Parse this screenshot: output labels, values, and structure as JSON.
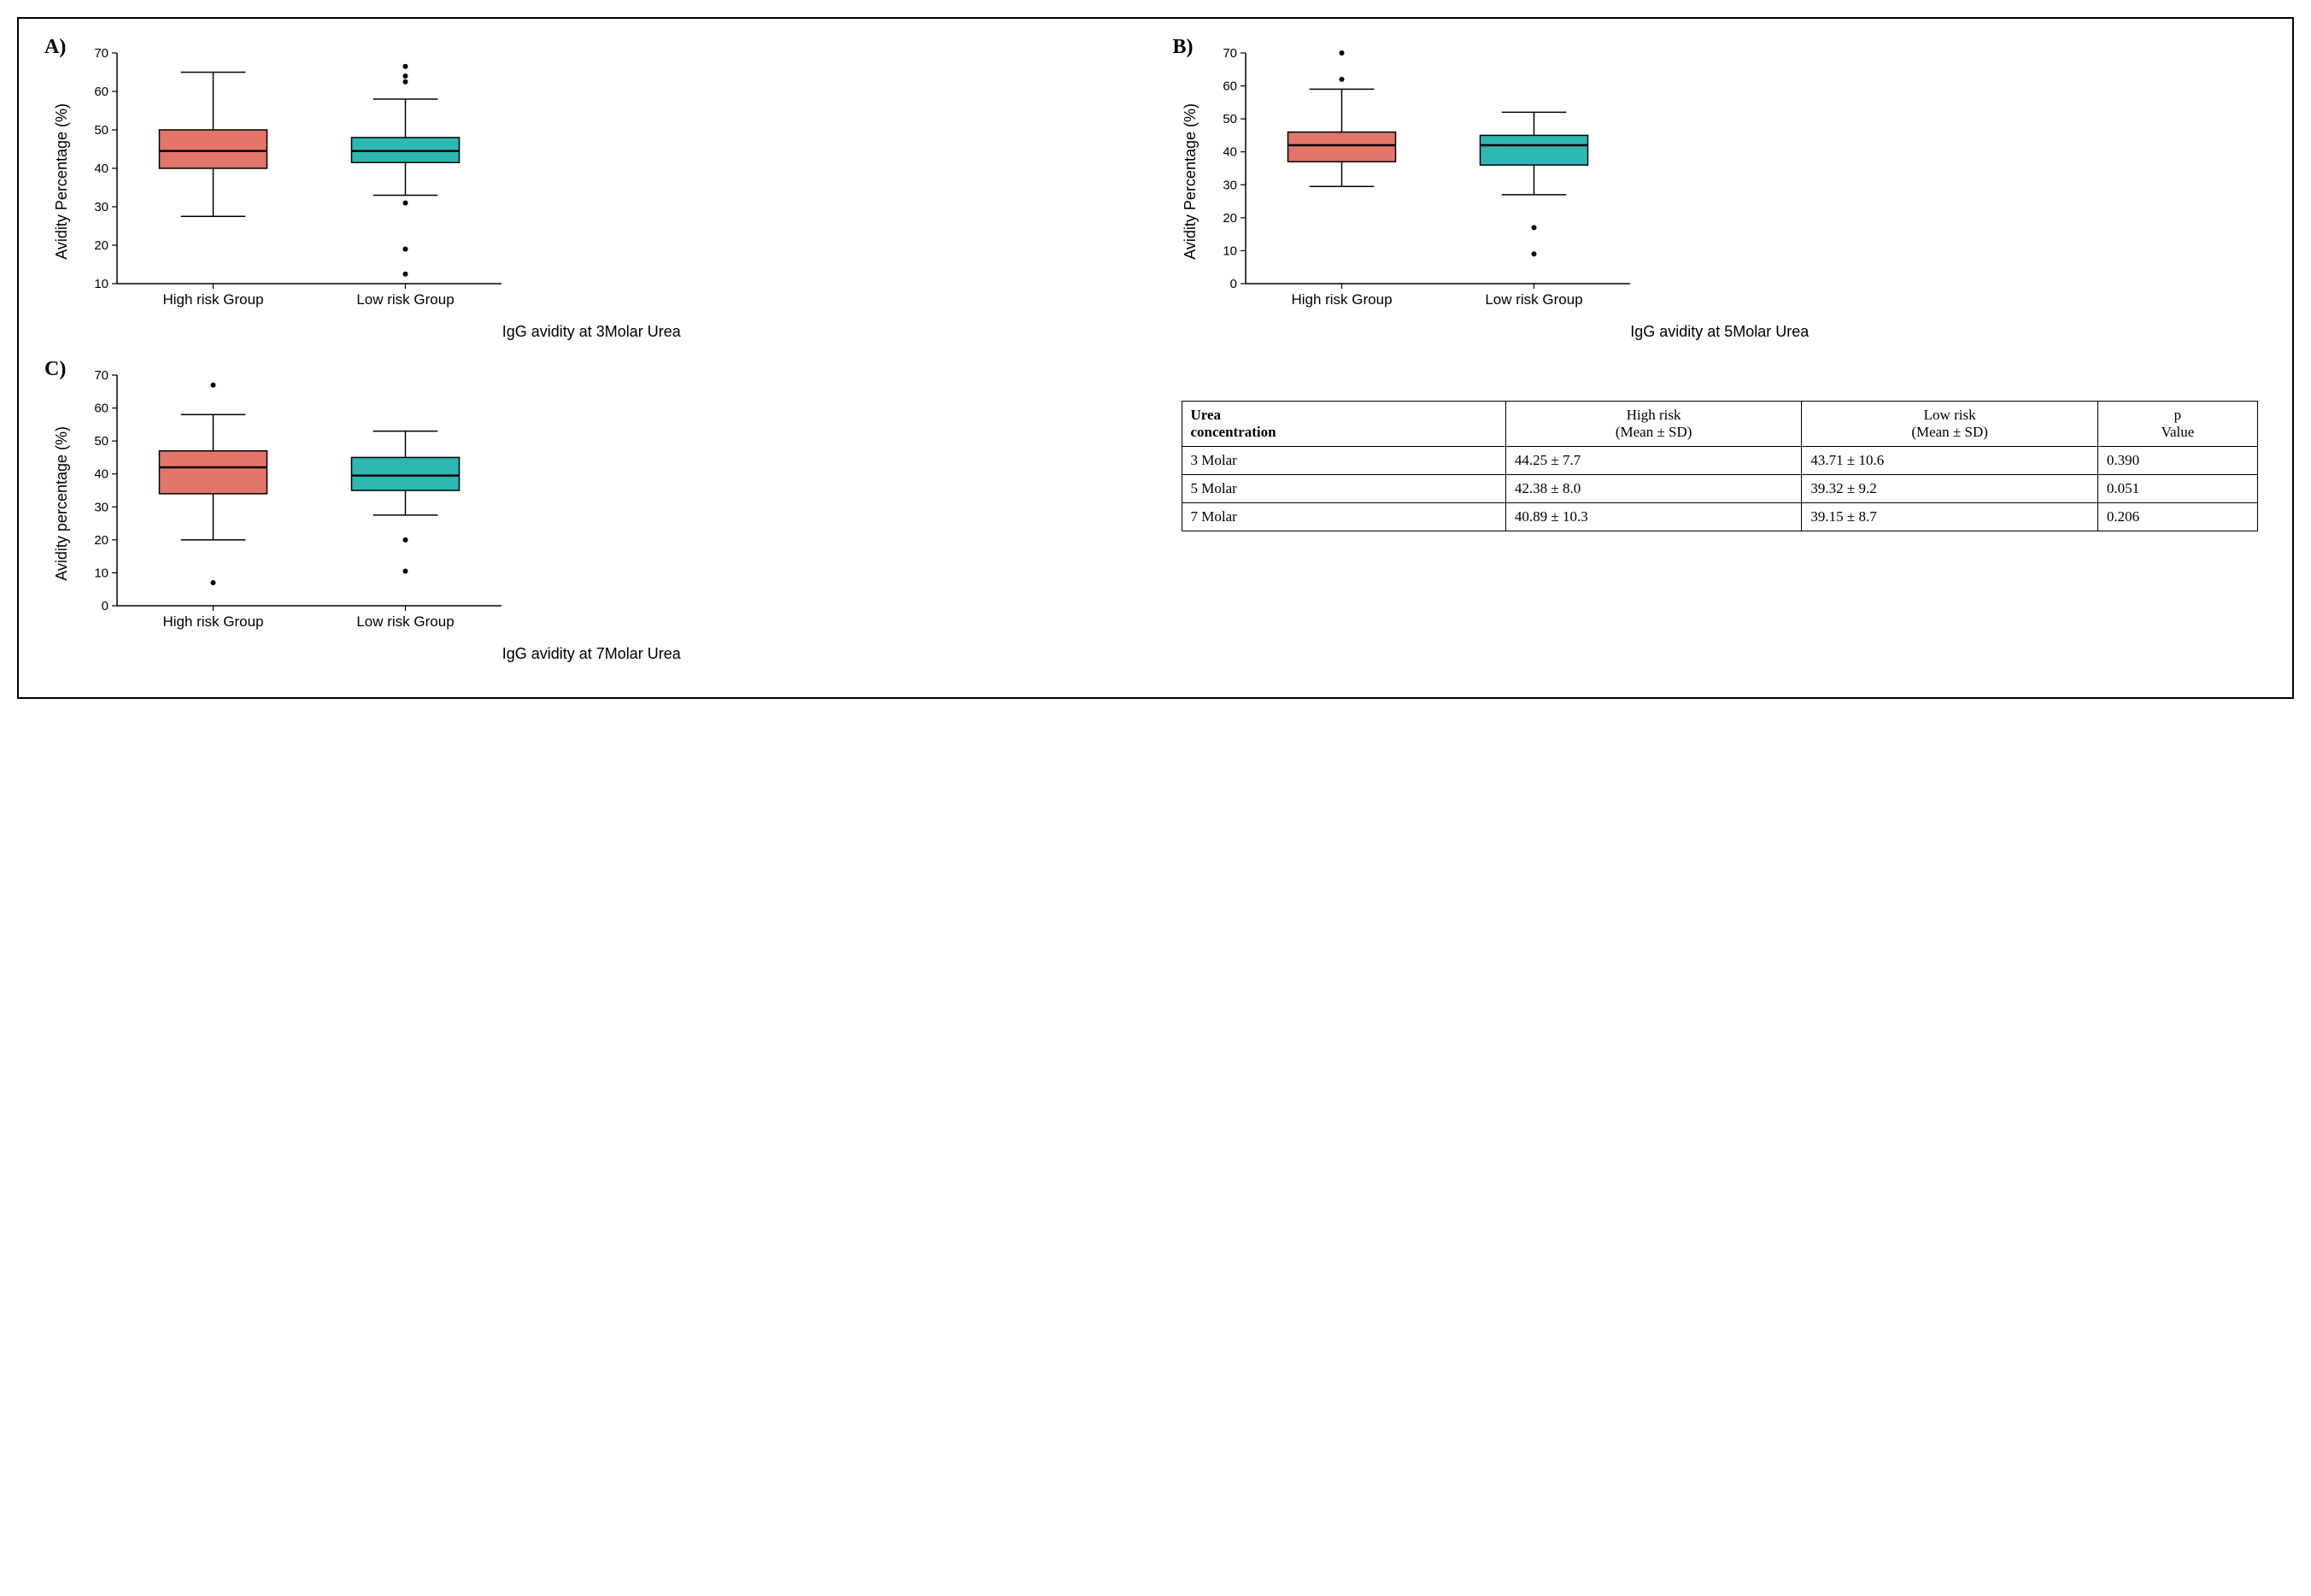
{
  "figure": {
    "background_color": "#ffffff",
    "frame_color": "#000000",
    "panel_label_fontsize": 24,
    "axis_label_fontsize": 18,
    "tick_label_fontsize": 15,
    "category_label_fontsize": 17
  },
  "colors": {
    "high_risk_fill": "#e3756a",
    "low_risk_fill": "#2eb8b3",
    "box_stroke": "#000000",
    "outlier_fill": "#000000",
    "axis_color": "#000000"
  },
  "panels": {
    "A": {
      "label": "A)",
      "ylabel": "Avidity Percentage (%)",
      "xlabel": "IgG avidity at 3Molar Urea",
      "categories": [
        "High risk Group",
        "Low risk Group"
      ],
      "ylim": [
        10,
        70
      ],
      "ytick_step": 10,
      "yticks": [
        10,
        20,
        30,
        40,
        50,
        60,
        70
      ],
      "box_width": 0.28,
      "boxes": [
        {
          "group": "High risk Group",
          "q1": 40,
          "median": 44.5,
          "q3": 50,
          "whisker_lo": 27.5,
          "whisker_hi": 65,
          "outliers": []
        },
        {
          "group": "Low risk Group",
          "q1": 41.5,
          "median": 44.5,
          "q3": 48,
          "whisker_lo": 33,
          "whisker_hi": 58,
          "outliers": [
            66.5,
            64,
            62.5,
            31,
            19,
            12.5
          ]
        }
      ]
    },
    "B": {
      "label": "B)",
      "ylabel": "Avidity Percentage (%)",
      "xlabel": "IgG avidity at 5Molar Urea",
      "categories": [
        "High risk Group",
        "Low risk Group"
      ],
      "ylim": [
        0,
        70
      ],
      "ytick_step": 10,
      "yticks": [
        0,
        10,
        20,
        30,
        40,
        50,
        60,
        70
      ],
      "box_width": 0.28,
      "boxes": [
        {
          "group": "High risk Group",
          "q1": 37,
          "median": 42,
          "q3": 46,
          "whisker_lo": 29.5,
          "whisker_hi": 59,
          "outliers": [
            70,
            62
          ]
        },
        {
          "group": "Low risk Group",
          "q1": 36,
          "median": 42,
          "q3": 45,
          "whisker_lo": 27,
          "whisker_hi": 52,
          "outliers": [
            17,
            9
          ]
        }
      ]
    },
    "C": {
      "label": "C)",
      "ylabel": "Avidity percentage (%)",
      "xlabel": "IgG avidity at 7Molar Urea",
      "categories": [
        "High risk Group",
        "Low risk Group"
      ],
      "ylim": [
        0,
        70
      ],
      "ytick_step": 10,
      "yticks": [
        0,
        10,
        20,
        30,
        40,
        50,
        60,
        70
      ],
      "box_width": 0.28,
      "boxes": [
        {
          "group": "High risk Group",
          "q1": 34,
          "median": 42,
          "q3": 47,
          "whisker_lo": 20,
          "whisker_hi": 58,
          "outliers": [
            67,
            7
          ]
        },
        {
          "group": "Low risk Group",
          "q1": 35,
          "median": 39.5,
          "q3": 45,
          "whisker_lo": 27.5,
          "whisker_hi": 53,
          "outliers": [
            20,
            10.5
          ]
        }
      ]
    }
  },
  "table": {
    "columns": [
      "Urea concentration",
      "High risk (Mean ± SD)",
      "Low risk (Mean ± SD)",
      "p Value"
    ],
    "header_lines": [
      [
        "Urea",
        "High  risk",
        "Low risk",
        "p"
      ],
      [
        "concentration",
        "(Mean ± SD)",
        "(Mean ± SD)",
        "Value"
      ]
    ],
    "rows": [
      [
        "3 Molar",
        "44.25 ± 7.7",
        "43.71 ± 10.6",
        "0.390"
      ],
      [
        "5 Molar",
        "42.38 ± 8.0",
        "39.32 ± 9.2",
        "0.051"
      ],
      [
        "7 Molar",
        "40.89 ± 10.3",
        "39.15 ± 8.7",
        "0.206"
      ]
    ]
  }
}
